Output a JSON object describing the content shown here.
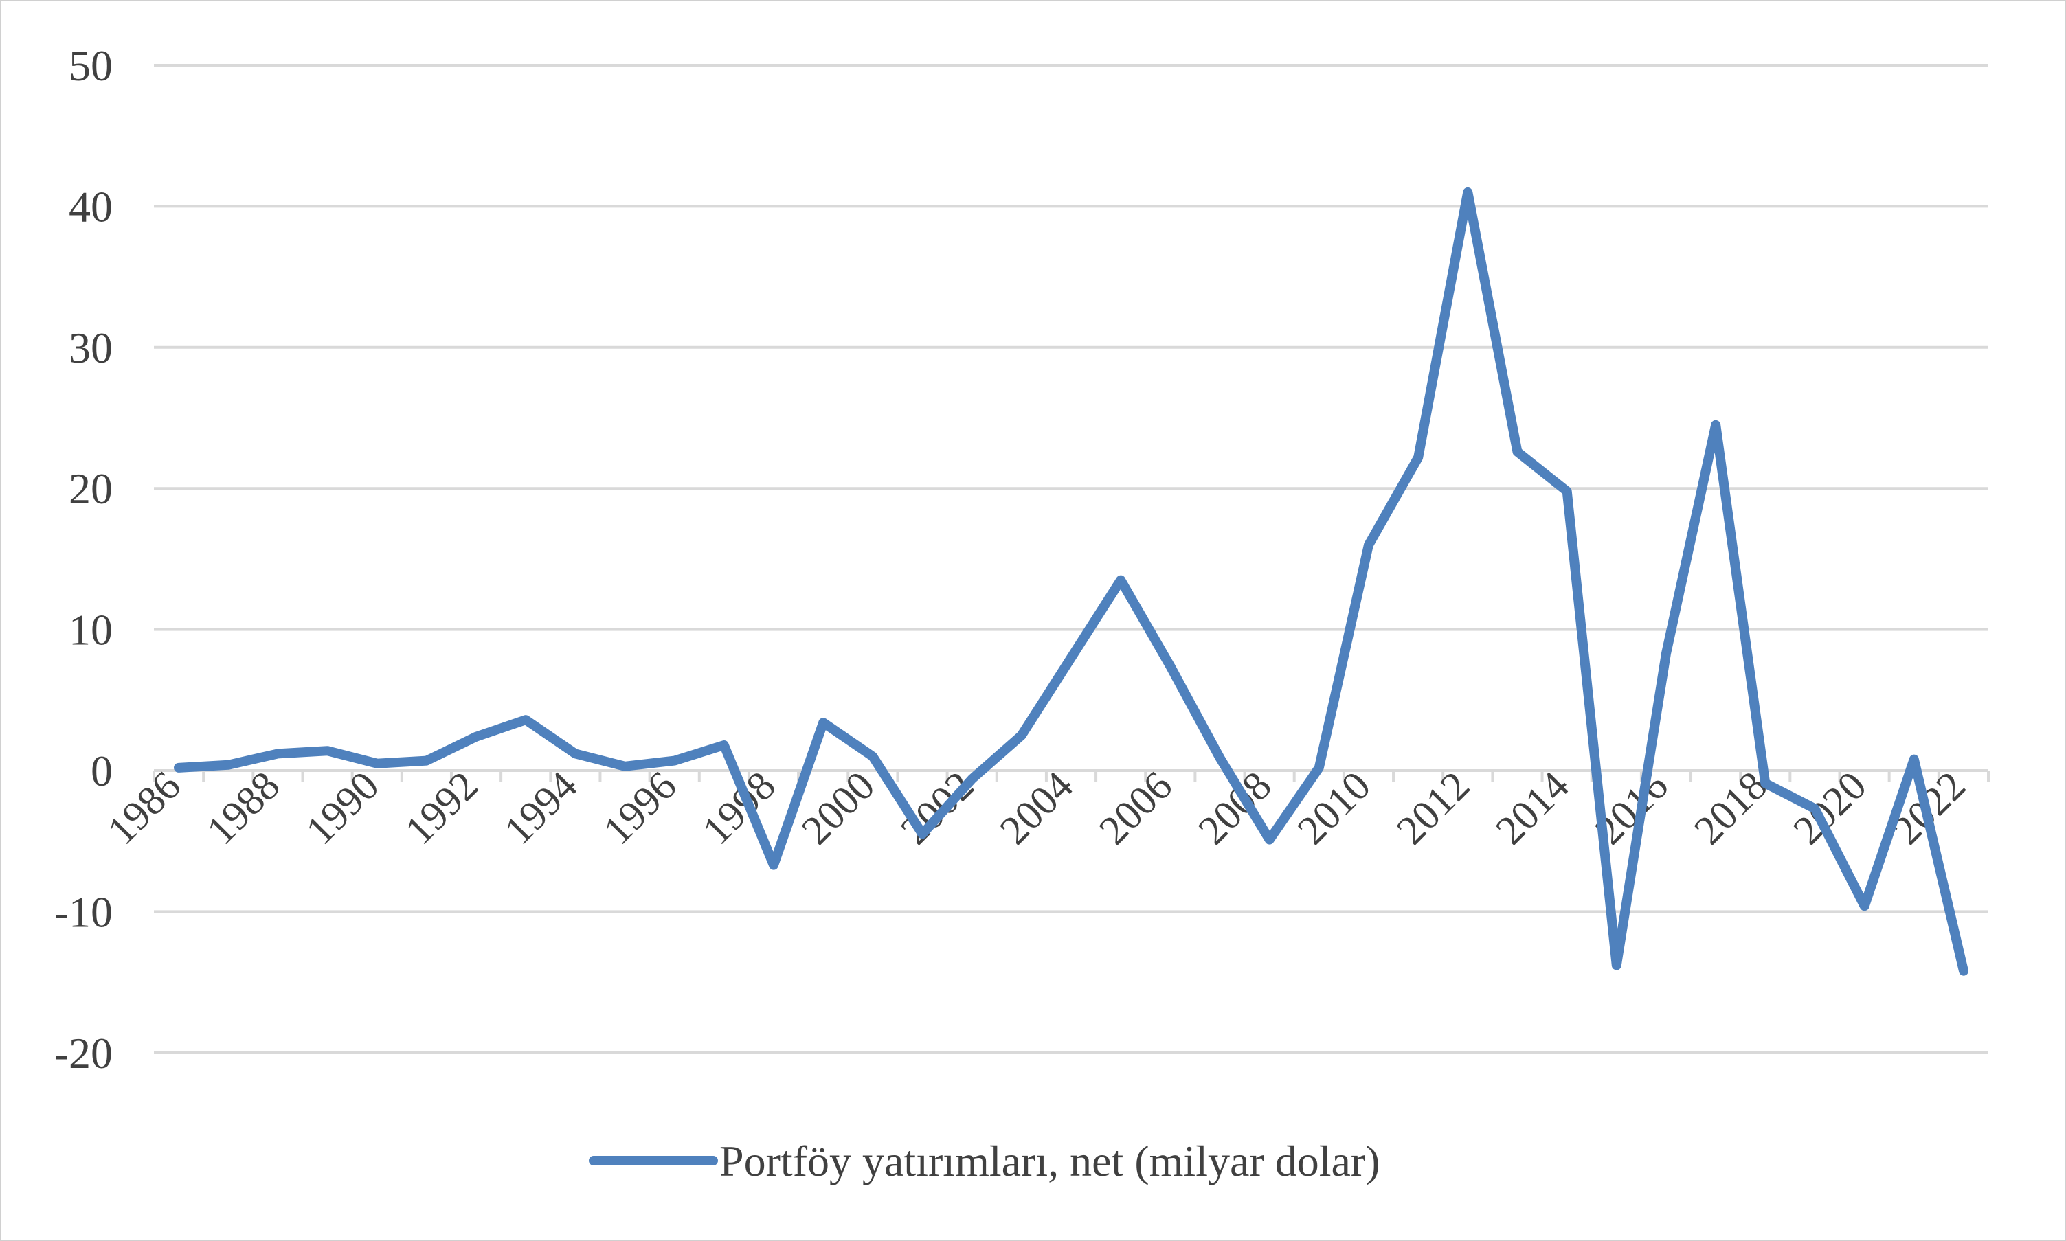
{
  "chart_data": {
    "type": "line",
    "title": "",
    "xlabel": "",
    "ylabel": "",
    "ylim": [
      -20,
      50
    ],
    "y_ticks": [
      50,
      40,
      30,
      20,
      10,
      0,
      -10,
      -20
    ],
    "x_tick_labels": [
      "1986",
      "1988",
      "1990",
      "1992",
      "1994",
      "1996",
      "1998",
      "2000",
      "2002",
      "2004",
      "2006",
      "2008",
      "2010",
      "2012",
      "2014",
      "2016",
      "2018",
      "2020",
      "2022"
    ],
    "grid": "horizontal",
    "legend_position": "bottom",
    "series": [
      {
        "name": "Portföy yatırımları, net (milyar dolar)",
        "color": "#4F81BD",
        "x": [
          1986,
          1987,
          1988,
          1989,
          1990,
          1991,
          1992,
          1993,
          1994,
          1995,
          1996,
          1997,
          1998,
          1999,
          2000,
          2001,
          2002,
          2003,
          2004,
          2005,
          2006,
          2007,
          2008,
          2009,
          2010,
          2011,
          2012,
          2013,
          2014,
          2015,
          2016,
          2017,
          2018,
          2019,
          2020,
          2021,
          2022
        ],
        "values": [
          0.2,
          0.4,
          1.2,
          1.4,
          0.5,
          0.7,
          2.4,
          3.6,
          1.2,
          0.3,
          0.7,
          1.8,
          -6.7,
          3.4,
          1.0,
          -4.5,
          -0.6,
          2.5,
          8.0,
          13.5,
          7.4,
          0.9,
          -4.9,
          0.2,
          16.0,
          22.2,
          41.0,
          22.6,
          19.8,
          -13.8,
          8.3,
          24.5,
          -0.9,
          -2.7,
          -9.6,
          0.8,
          -14.2
        ]
      }
    ]
  }
}
